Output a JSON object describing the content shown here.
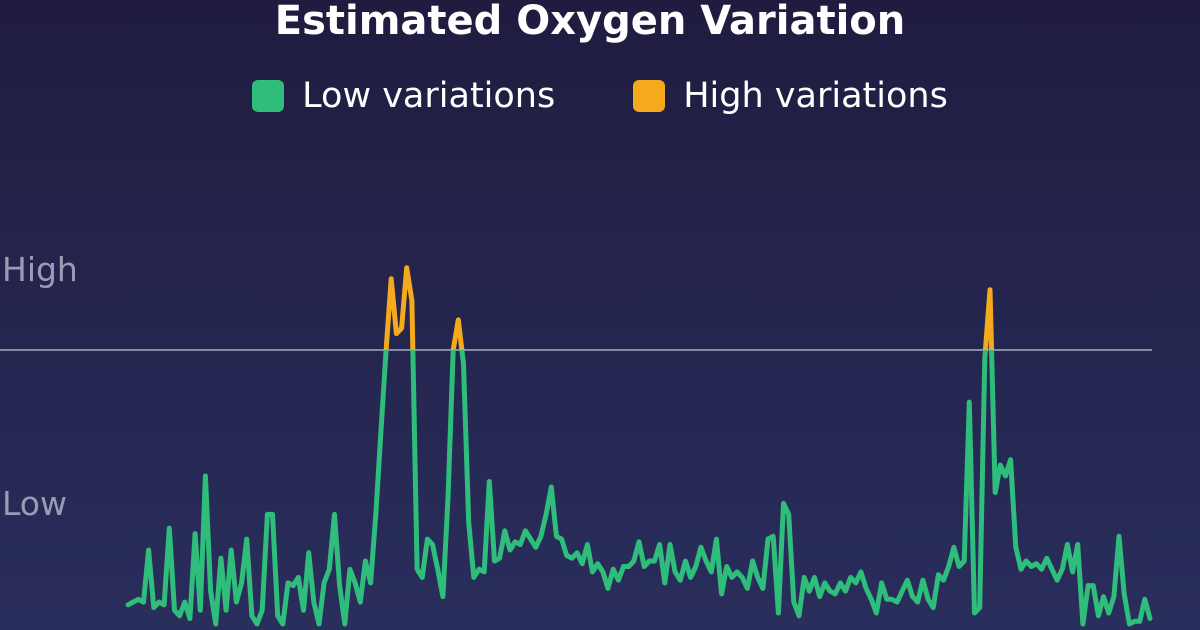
{
  "chart_data": {
    "type": "line",
    "title": "Estimated Oxygen Variation",
    "legend": [
      {
        "name": "Low variations",
        "color": "#2ebd7a"
      },
      {
        "name": "High variations",
        "color": "#f5a91c"
      }
    ],
    "y_labels": [
      "High",
      "Low"
    ],
    "threshold": 1.0,
    "ylim": [
      0,
      1.33
    ],
    "grid": false,
    "legend_position": "top-center",
    "values": [
      0.07,
      0.08,
      0.09,
      0.08,
      0.27,
      0.06,
      0.08,
      0.07,
      0.35,
      0.05,
      0.03,
      0.08,
      0.02,
      0.33,
      0.05,
      0.54,
      0.12,
      0.0,
      0.24,
      0.05,
      0.27,
      0.08,
      0.15,
      0.31,
      0.03,
      0.0,
      0.05,
      0.4,
      0.4,
      0.03,
      0.0,
      0.15,
      0.14,
      0.17,
      0.05,
      0.26,
      0.08,
      0.0,
      0.15,
      0.2,
      0.4,
      0.14,
      0.0,
      0.2,
      0.15,
      0.08,
      0.23,
      0.15,
      0.4,
      0.7,
      1.0,
      1.26,
      1.06,
      1.08,
      1.3,
      1.18,
      0.2,
      0.17,
      0.31,
      0.29,
      0.2,
      0.1,
      0.46,
      1.0,
      1.11,
      0.95,
      0.37,
      0.17,
      0.2,
      0.19,
      0.52,
      0.23,
      0.24,
      0.34,
      0.27,
      0.3,
      0.29,
      0.34,
      0.31,
      0.28,
      0.32,
      0.4,
      0.5,
      0.32,
      0.31,
      0.25,
      0.24,
      0.26,
      0.22,
      0.29,
      0.19,
      0.22,
      0.19,
      0.13,
      0.2,
      0.16,
      0.21,
      0.21,
      0.23,
      0.3,
      0.21,
      0.23,
      0.23,
      0.29,
      0.15,
      0.29,
      0.19,
      0.16,
      0.23,
      0.17,
      0.21,
      0.28,
      0.23,
      0.19,
      0.31,
      0.11,
      0.21,
      0.17,
      0.19,
      0.17,
      0.13,
      0.23,
      0.17,
      0.13,
      0.31,
      0.32,
      0.04,
      0.44,
      0.4,
      0.08,
      0.03,
      0.17,
      0.12,
      0.17,
      0.1,
      0.15,
      0.12,
      0.11,
      0.15,
      0.12,
      0.17,
      0.15,
      0.19,
      0.13,
      0.09,
      0.04,
      0.15,
      0.09,
      0.09,
      0.08,
      0.12,
      0.16,
      0.1,
      0.08,
      0.16,
      0.09,
      0.06,
      0.18,
      0.16,
      0.21,
      0.28,
      0.21,
      0.23,
      0.81,
      0.04,
      0.06,
      0.97,
      1.22,
      0.48,
      0.58,
      0.54,
      0.6,
      0.28,
      0.2,
      0.23,
      0.21,
      0.22,
      0.2,
      0.24,
      0.2,
      0.16,
      0.2,
      0.29,
      0.19,
      0.29,
      0.0,
      0.14,
      0.14,
      0.03,
      0.1,
      0.04,
      0.1,
      0.32,
      0.11,
      0.0,
      0.01,
      0.01,
      0.09,
      0.02
    ]
  }
}
